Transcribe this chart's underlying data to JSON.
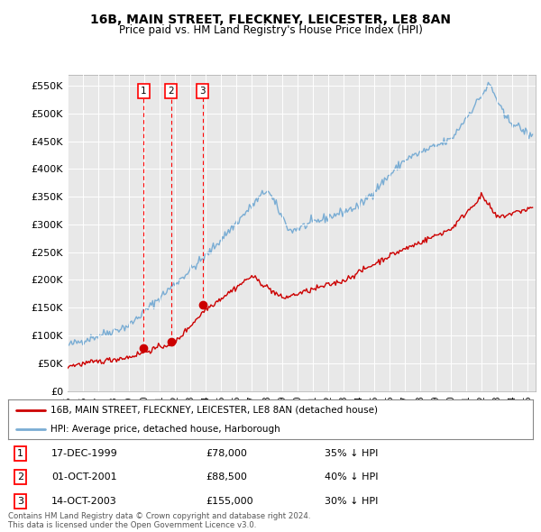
{
  "title": "16B, MAIN STREET, FLECKNEY, LEICESTER, LE8 8AN",
  "subtitle": "Price paid vs. HM Land Registry's House Price Index (HPI)",
  "ylabel_ticks": [
    "£0",
    "£50K",
    "£100K",
    "£150K",
    "£200K",
    "£250K",
    "£300K",
    "£350K",
    "£400K",
    "£450K",
    "£500K",
    "£550K"
  ],
  "ytick_values": [
    0,
    50000,
    100000,
    150000,
    200000,
    250000,
    300000,
    350000,
    400000,
    450000,
    500000,
    550000
  ],
  "ylim": [
    0,
    570000
  ],
  "legend_line1": "16B, MAIN STREET, FLECKNEY, LEICESTER, LE8 8AN (detached house)",
  "legend_line2": "HPI: Average price, detached house, Harborough",
  "line_color_red": "#cc0000",
  "line_color_blue": "#7aadd4",
  "transactions": [
    {
      "label": "1",
      "date": "17-DEC-1999",
      "price": 78000,
      "pct": "35% ↓ HPI",
      "x": 1999.96
    },
    {
      "label": "2",
      "date": "01-OCT-2001",
      "price": 88500,
      "pct": "40% ↓ HPI",
      "x": 2001.75
    },
    {
      "label": "3",
      "date": "14-OCT-2003",
      "price": 155000,
      "pct": "30% ↓ HPI",
      "x": 2003.79
    }
  ],
  "footer_line1": "Contains HM Land Registry data © Crown copyright and database right 2024.",
  "footer_line2": "This data is licensed under the Open Government Licence v3.0.",
  "background_color": "#ffffff",
  "plot_bg_color": "#e8e8e8",
  "grid_color": "#ffffff"
}
